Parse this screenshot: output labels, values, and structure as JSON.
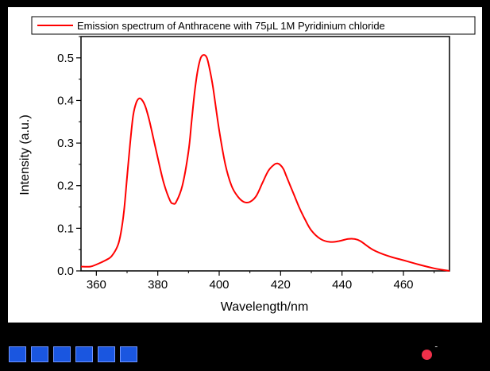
{
  "chart_data": {
    "type": "line",
    "legend_text": "Emission spectrum of Anthracene with 75μL 1M Pyridinium chloride",
    "legend_placement": "top",
    "xlabel": "Wavelength/nm",
    "ylabel": "Intensity (a.u.)",
    "xlim": [
      355,
      475
    ],
    "ylim": [
      0.0,
      0.55
    ],
    "x_ticks": [
      360,
      380,
      400,
      420,
      440,
      460
    ],
    "y_ticks": [
      "0.0",
      "0.1",
      "0.2",
      "0.3",
      "0.4",
      "0.5"
    ],
    "series": [
      {
        "color": "#ff0000",
        "x": [
          355,
          358,
          360,
          363,
          365,
          367,
          368,
          369,
          370,
          371,
          372,
          373,
          374,
          375,
          376,
          377,
          378,
          380,
          382,
          384,
          385,
          386,
          388,
          390,
          391,
          392,
          393,
          394,
          395,
          396,
          397,
          398,
          400,
          402,
          404,
          406,
          408,
          410,
          412,
          414,
          416,
          418,
          419,
          420,
          421,
          422,
          424,
          426,
          428,
          430,
          433,
          436,
          439,
          442,
          444,
          446,
          450,
          455,
          460,
          465,
          470,
          475
        ],
        "y": [
          0.01,
          0.01,
          0.015,
          0.025,
          0.035,
          0.06,
          0.09,
          0.14,
          0.22,
          0.3,
          0.365,
          0.395,
          0.405,
          0.4,
          0.385,
          0.36,
          0.33,
          0.265,
          0.205,
          0.165,
          0.158,
          0.162,
          0.2,
          0.28,
          0.35,
          0.42,
          0.47,
          0.5,
          0.507,
          0.5,
          0.47,
          0.43,
          0.33,
          0.25,
          0.2,
          0.175,
          0.162,
          0.162,
          0.175,
          0.205,
          0.235,
          0.25,
          0.252,
          0.248,
          0.238,
          0.22,
          0.185,
          0.15,
          0.12,
          0.095,
          0.075,
          0.068,
          0.07,
          0.075,
          0.075,
          0.07,
          0.05,
          0.035,
          0.025,
          0.015,
          0.006,
          0.0
        ]
      }
    ]
  },
  "footer": {
    "nav_buttons": 6,
    "colors": {
      "nav": "#1a56e0",
      "record": "#f0304a"
    }
  }
}
